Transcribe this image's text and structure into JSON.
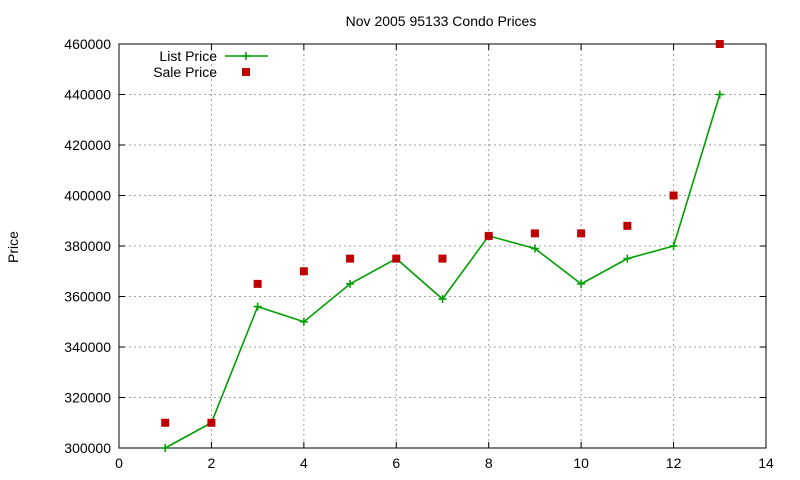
{
  "chart_data": {
    "type": "line",
    "title": "Nov 2005 95133 Condo Prices",
    "xlabel": "",
    "ylabel": "Price",
    "xlim": [
      0,
      14
    ],
    "ylim": [
      300000,
      460000
    ],
    "x_ticks": [
      0,
      2,
      4,
      6,
      8,
      10,
      12,
      14
    ],
    "y_ticks": [
      300000,
      320000,
      340000,
      360000,
      380000,
      400000,
      420000,
      440000,
      460000
    ],
    "grid": true,
    "legend_position": "top-left",
    "series": [
      {
        "name": "List Price",
        "style": "line-with-plus-markers",
        "color": "#00a000",
        "x": [
          1,
          2,
          3,
          4,
          5,
          6,
          7,
          8,
          9,
          10,
          11,
          12,
          13
        ],
        "values": [
          300000,
          310000,
          356000,
          350000,
          365000,
          375000,
          359000,
          384000,
          379000,
          365000,
          375000,
          380000,
          440000
        ]
      },
      {
        "name": "Sale Price",
        "style": "square-markers",
        "color": "#c00000",
        "x": [
          1,
          2,
          3,
          4,
          5,
          6,
          7,
          8,
          9,
          10,
          11,
          12,
          13
        ],
        "values": [
          310000,
          310000,
          365000,
          370000,
          375000,
          375000,
          375000,
          384000,
          385000,
          385000,
          388000,
          400000,
          460000
        ]
      }
    ]
  }
}
